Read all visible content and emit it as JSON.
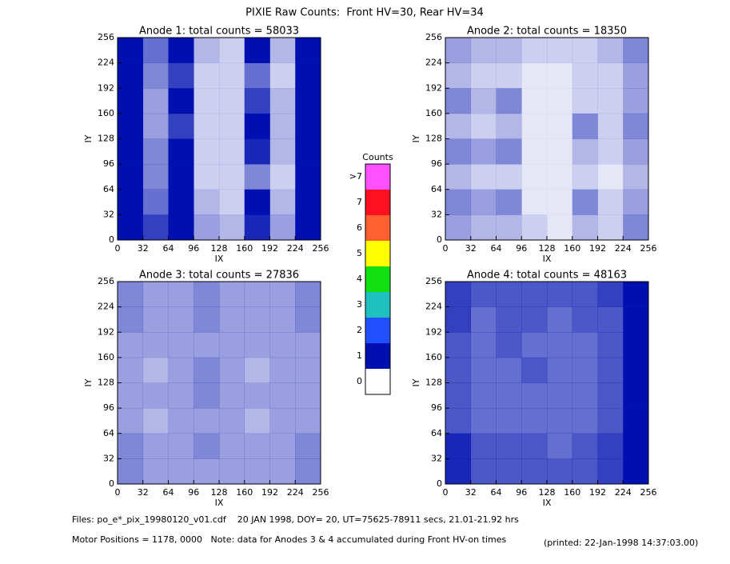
{
  "title": "PIXIE Raw Counts:  Front HV=30, Rear HV=34",
  "chart_data": [
    {
      "type": "heatmap",
      "title": "Anode 1: total counts = 58033",
      "xlabel": "IX",
      "ylabel": "IY",
      "xlim": [
        0,
        256
      ],
      "ylim": [
        0,
        256
      ],
      "xticks": [
        0,
        32,
        64,
        96,
        128,
        160,
        192,
        224,
        256
      ],
      "yticks": [
        0,
        32,
        64,
        96,
        128,
        160,
        192,
        224,
        256
      ],
      "values": [
        [
          1.5,
          0.6,
          1.2,
          0.3,
          0.2,
          1.0,
          0.3,
          1.5
        ],
        [
          1.6,
          0.5,
          0.8,
          0.2,
          0.2,
          0.6,
          0.2,
          1.2
        ],
        [
          1.4,
          0.4,
          1.3,
          0.2,
          0.2,
          0.8,
          0.3,
          1.1
        ],
        [
          1.3,
          0.4,
          0.8,
          0.2,
          0.2,
          1.2,
          0.3,
          1.4
        ],
        [
          1.6,
          0.5,
          1.3,
          0.2,
          0.2,
          0.9,
          0.3,
          1.2
        ],
        [
          1.5,
          0.5,
          1.0,
          0.2,
          0.2,
          0.5,
          0.2,
          1.0
        ],
        [
          1.7,
          0.6,
          1.3,
          0.3,
          0.2,
          1.2,
          0.3,
          1.2
        ],
        [
          1.8,
          0.8,
          1.2,
          0.4,
          0.3,
          0.9,
          0.4,
          1.3
        ]
      ]
    },
    {
      "type": "heatmap",
      "title": "Anode 2: total counts = 18350",
      "xlabel": "IX",
      "ylabel": "IY",
      "xlim": [
        0,
        256
      ],
      "ylim": [
        0,
        256
      ],
      "xticks": [
        0,
        32,
        64,
        96,
        128,
        160,
        192,
        224,
        256
      ],
      "yticks": [
        0,
        32,
        64,
        96,
        128,
        160,
        192,
        224,
        256
      ],
      "values": [
        [
          0.4,
          0.3,
          0.3,
          0.2,
          0.2,
          0.2,
          0.3,
          0.5
        ],
        [
          0.3,
          0.2,
          0.2,
          0.1,
          0.1,
          0.2,
          0.2,
          0.4
        ],
        [
          0.5,
          0.3,
          0.5,
          0.1,
          0.1,
          0.2,
          0.2,
          0.4
        ],
        [
          0.3,
          0.2,
          0.3,
          0.1,
          0.1,
          0.5,
          0.2,
          0.5
        ],
        [
          0.5,
          0.4,
          0.5,
          0.1,
          0.1,
          0.3,
          0.2,
          0.4
        ],
        [
          0.3,
          0.2,
          0.2,
          0.1,
          0.1,
          0.2,
          0.1,
          0.3
        ],
        [
          0.5,
          0.4,
          0.5,
          0.1,
          0.1,
          0.5,
          0.2,
          0.4
        ],
        [
          0.4,
          0.3,
          0.3,
          0.2,
          0.1,
          0.3,
          0.2,
          0.5
        ]
      ]
    },
    {
      "type": "heatmap",
      "title": "Anode 3: total counts = 27836",
      "xlabel": "IX",
      "ylabel": "IY",
      "xlim": [
        0,
        256
      ],
      "ylim": [
        0,
        256
      ],
      "xticks": [
        0,
        32,
        64,
        96,
        128,
        160,
        192,
        224,
        256
      ],
      "yticks": [
        0,
        32,
        64,
        96,
        128,
        160,
        192,
        224,
        256
      ],
      "values": [
        [
          0.5,
          0.4,
          0.4,
          0.5,
          0.4,
          0.4,
          0.4,
          0.5
        ],
        [
          0.5,
          0.4,
          0.4,
          0.5,
          0.4,
          0.4,
          0.4,
          0.5
        ],
        [
          0.4,
          0.4,
          0.4,
          0.4,
          0.4,
          0.4,
          0.4,
          0.4
        ],
        [
          0.4,
          0.3,
          0.4,
          0.5,
          0.4,
          0.3,
          0.4,
          0.4
        ],
        [
          0.4,
          0.4,
          0.4,
          0.5,
          0.4,
          0.4,
          0.4,
          0.4
        ],
        [
          0.4,
          0.3,
          0.4,
          0.4,
          0.4,
          0.3,
          0.4,
          0.4
        ],
        [
          0.5,
          0.4,
          0.4,
          0.5,
          0.4,
          0.4,
          0.4,
          0.5
        ],
        [
          0.5,
          0.4,
          0.4,
          0.4,
          0.4,
          0.4,
          0.4,
          0.5
        ]
      ]
    },
    {
      "type": "heatmap",
      "title": "Anode 4: total counts = 48163",
      "xlabel": "IX",
      "ylabel": "IY",
      "xlim": [
        0,
        256
      ],
      "ylim": [
        0,
        256
      ],
      "xticks": [
        0,
        32,
        64,
        96,
        128,
        160,
        192,
        224,
        256
      ],
      "yticks": [
        0,
        32,
        64,
        96,
        128,
        160,
        192,
        224,
        256
      ],
      "values": [
        [
          0.8,
          0.7,
          0.7,
          0.7,
          0.7,
          0.7,
          0.8,
          1.4
        ],
        [
          0.8,
          0.6,
          0.7,
          0.7,
          0.6,
          0.7,
          0.7,
          1.3
        ],
        [
          0.7,
          0.6,
          0.7,
          0.6,
          0.6,
          0.6,
          0.7,
          1.2
        ],
        [
          0.7,
          0.6,
          0.6,
          0.7,
          0.6,
          0.6,
          0.7,
          1.2
        ],
        [
          0.7,
          0.6,
          0.6,
          0.6,
          0.6,
          0.6,
          0.7,
          1.2
        ],
        [
          0.7,
          0.6,
          0.6,
          0.6,
          0.6,
          0.6,
          0.7,
          1.2
        ],
        [
          0.9,
          0.7,
          0.7,
          0.7,
          0.6,
          0.7,
          0.8,
          1.3
        ],
        [
          0.9,
          0.7,
          0.7,
          0.7,
          0.7,
          0.7,
          0.8,
          1.3
        ]
      ]
    }
  ],
  "colorbar": {
    "title": "Counts",
    "levels": [
      0,
      1,
      2,
      3,
      4,
      5,
      6,
      7,
      {
        "value": 8,
        "label": ">7"
      }
    ],
    "colors": [
      "#ffffff",
      "#0010b0",
      "#2050ff",
      "#20c0c0",
      "#10e010",
      "#ffff00",
      "#ff6030",
      "#ff1020",
      "#ff50ff"
    ]
  },
  "footer": [
    "Files: po_e*_pix_19980120_v01.cdf    20 JAN 1998, DOY= 20, UT=75625-78911 secs, 21.01-21.92 hrs",
    "Motor Positions = 1178, 0000   Note: data for Anodes 3 & 4 accumulated during Front HV-on times",
    "(printed: 22-Jan-1998 14:37:03.00)"
  ]
}
